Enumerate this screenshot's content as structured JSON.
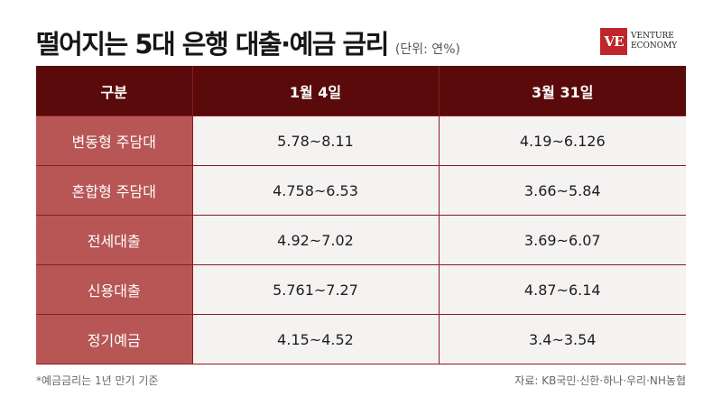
{
  "header": {
    "title": "떨어지는 5대 은행 대출·예금 금리",
    "unit": "(단위: 연%)"
  },
  "logo": {
    "mark": "VE",
    "line1": "VENTURE",
    "line2": "ECONOMY",
    "color": "#c0272d"
  },
  "table": {
    "columns": [
      "구분",
      "1월 4일",
      "3월 31일"
    ],
    "rows": [
      {
        "category": "변동형 주담대",
        "jan4": "5.78~8.11",
        "mar31": "4.19~6.126"
      },
      {
        "category": "혼합형 주담대",
        "jan4": "4.758~6.53",
        "mar31": "3.66~5.84"
      },
      {
        "category": "전세대출",
        "jan4": "4.92~7.02",
        "mar31": "3.69~6.07"
      },
      {
        "category": "신용대출",
        "jan4": "5.761~7.27",
        "mar31": "4.87~6.14"
      },
      {
        "category": "정기예금",
        "jan4": "4.15~4.52",
        "mar31": "3.4~3.54"
      }
    ]
  },
  "footer": {
    "note": "*예금금리는 1년 만기 기준",
    "source": "자료: KB국민·신한·하나·우리·NH농협"
  },
  "colors": {
    "header_bg": "#5a0a0b",
    "category_bg": "#b85656",
    "cell_bg": "#f5f2f2",
    "border": "#8c1c1e"
  }
}
